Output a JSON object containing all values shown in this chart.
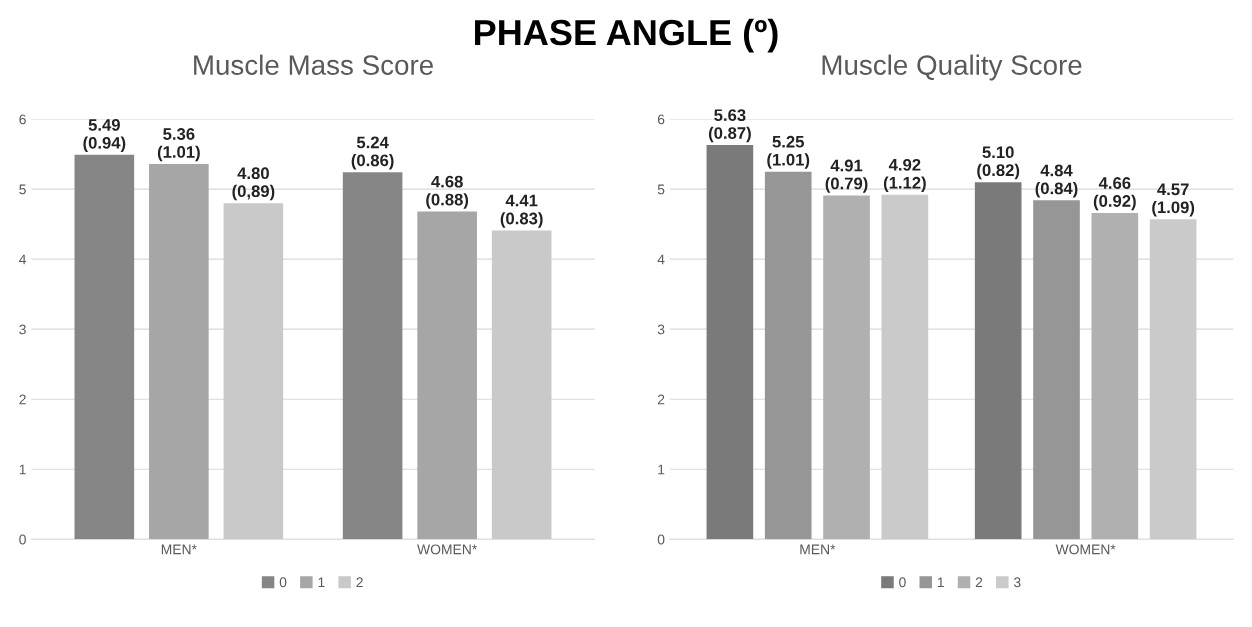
{
  "chart_data": [
    {
      "type": "bar",
      "title": "Muscle Mass Score",
      "annotations": [
        "PHASE ANGLE (º)"
      ],
      "categories": [
        "MEN*",
        "WOMEN*"
      ],
      "ylim": [
        0,
        6
      ],
      "yticks": [
        0,
        1,
        2,
        3,
        4,
        5,
        6
      ],
      "grid": "y",
      "legend": "bottom",
      "series": [
        {
          "name": "0",
          "color": "#868686",
          "values": [
            5.49,
            5.24
          ],
          "value_labels": [
            "5.49\n(0.94)",
            "5.24\n(0.86)"
          ]
        },
        {
          "name": "1",
          "color": "#a6a6a6",
          "values": [
            5.36,
            4.68
          ],
          "value_labels": [
            "5.36\n(1.01)",
            "4.68\n(0.88)"
          ]
        },
        {
          "name": "2",
          "color": "#c9c9c9",
          "values": [
            4.8,
            4.41
          ],
          "value_labels": [
            "4.80\n(0,89)",
            "4.41\n(0.83)"
          ]
        }
      ]
    },
    {
      "type": "bar",
      "title": "Muscle Quality Score",
      "categories": [
        "MEN*",
        "WOMEN*"
      ],
      "ylim": [
        0,
        6
      ],
      "yticks": [
        0,
        1,
        2,
        3,
        4,
        5,
        6
      ],
      "grid": "y",
      "legend": "bottom",
      "series": [
        {
          "name": "0",
          "color": "#7a7a7a",
          "values": [
            5.63,
            5.1
          ],
          "value_labels": [
            "5.63\n(0.87)",
            "5.10\n(0.82)"
          ]
        },
        {
          "name": "1",
          "color": "#969696",
          "values": [
            5.25,
            4.84
          ],
          "value_labels": [
            "5.25\n(1.01)",
            "4.84\n(0.84)"
          ]
        },
        {
          "name": "2",
          "color": "#b0b0b0",
          "values": [
            4.91,
            4.66
          ],
          "value_labels": [
            "4.91\n(0.79)",
            "4.66\n(0.92)"
          ]
        },
        {
          "name": "3",
          "color": "#cacaca",
          "values": [
            4.92,
            4.57
          ],
          "value_labels": [
            "4.92\n(1.12)",
            "4.57\n(1.09)"
          ]
        }
      ]
    }
  ]
}
